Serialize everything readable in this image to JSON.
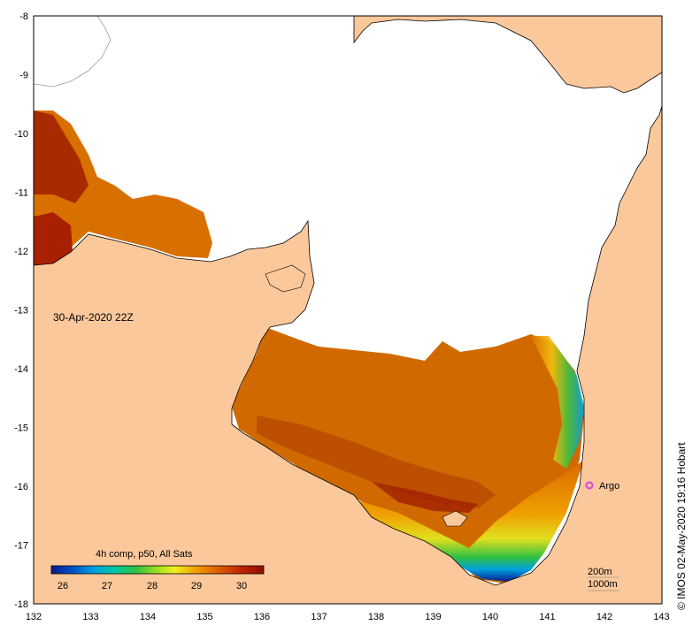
{
  "map": {
    "timestamp": "30-Apr-2020 22Z",
    "lon_ticks": [
      "132",
      "133",
      "134",
      "135",
      "136",
      "137",
      "138",
      "139",
      "140",
      "141",
      "142",
      "143"
    ],
    "lat_ticks": [
      "-8",
      "-9",
      "-10",
      "-11",
      "-12",
      "-13",
      "-14",
      "-15",
      "-16",
      "-17",
      "-18"
    ],
    "colors": {
      "land": "#fbc89b",
      "sea_no_data": "#ffffff",
      "sst_warm": "#cc5a00",
      "sst_hot": "#aa1a00",
      "coast": "#000000"
    }
  },
  "legend": {
    "title": "4h comp, p50, All Sats",
    "ticks": [
      "26",
      "27",
      "28",
      "29",
      "30"
    ],
    "colors": [
      "#0a1a8a",
      "#0050c8",
      "#00a0e0",
      "#00c8a0",
      "#30c040",
      "#a0e020",
      "#f0f020",
      "#f0a000",
      "#e06000",
      "#c02000",
      "#901000"
    ]
  },
  "marker": {
    "label": "Argo",
    "color": "#e040e0"
  },
  "depth_contours": [
    "200m",
    "1000m"
  ],
  "credit": "© IMOS 02-May-2020 19:16 Hobart"
}
